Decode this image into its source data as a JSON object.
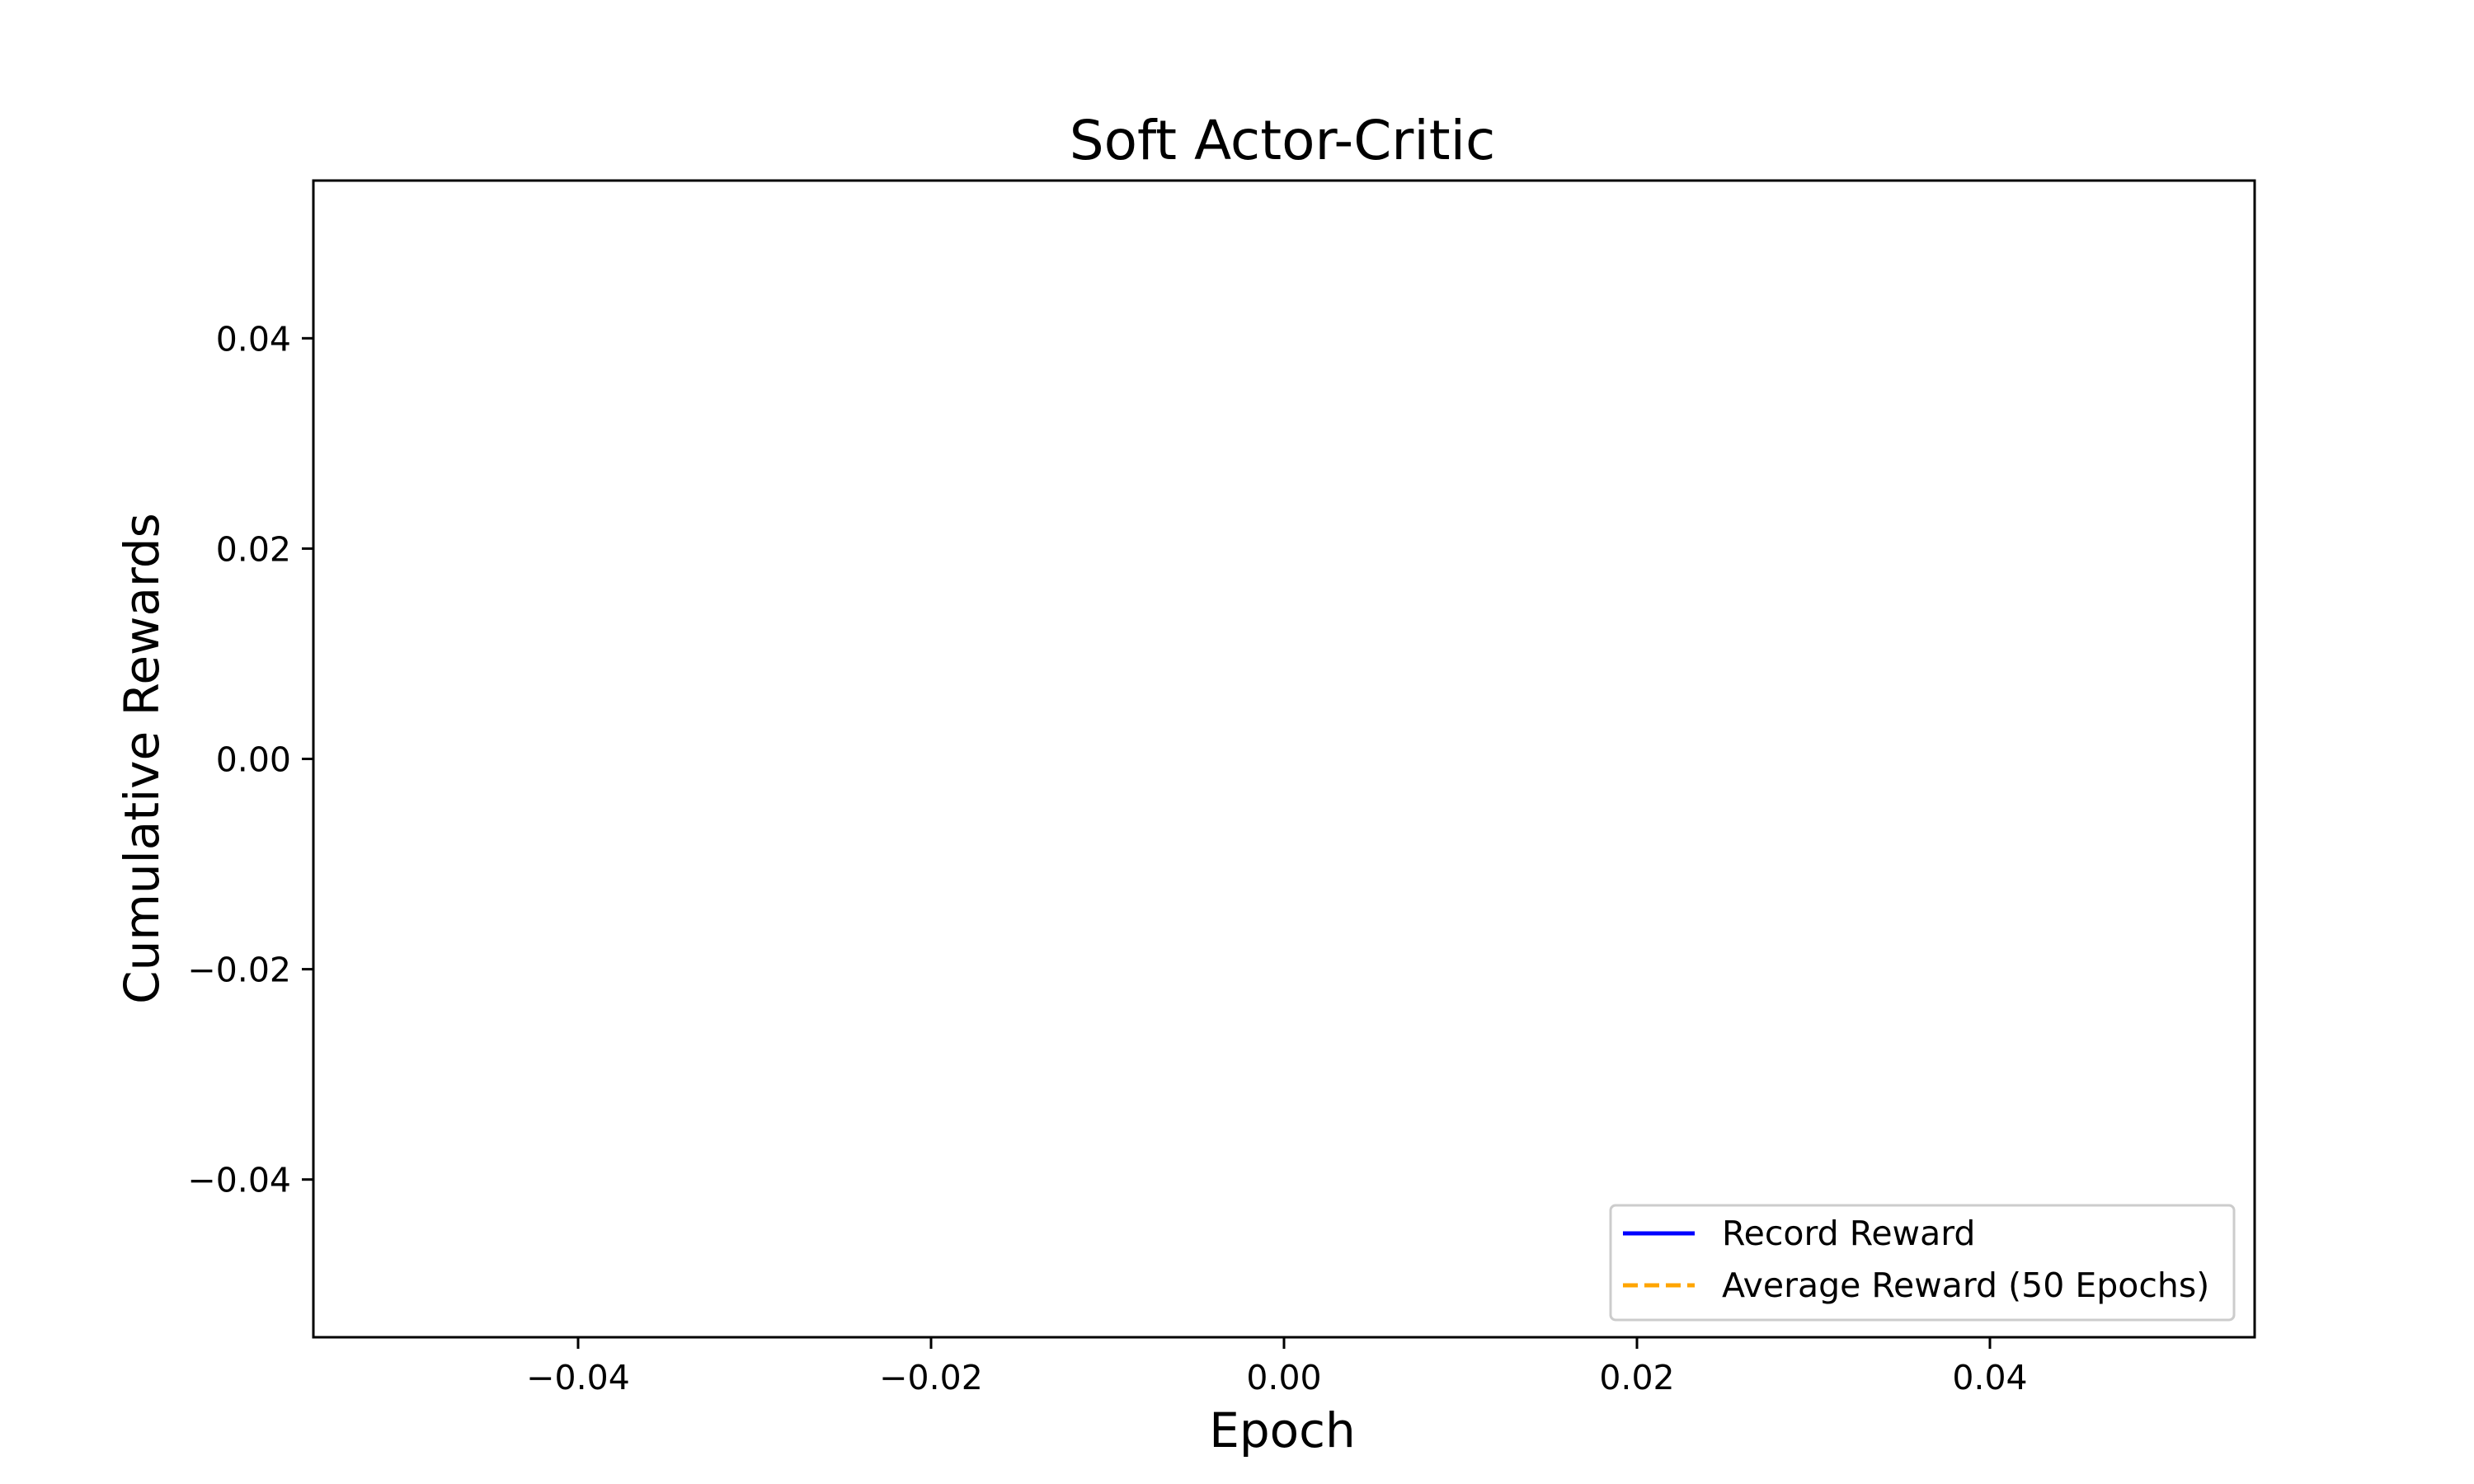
{
  "chart_data": {
    "type": "line",
    "title": "Soft Actor-Critic",
    "xlabel": "Epoch",
    "ylabel": "Cumulative Rewards",
    "xlim": [
      -0.055,
      0.055
    ],
    "ylim": [
      -0.055,
      0.055
    ],
    "x_ticks": [
      "−0.04",
      "−0.02",
      "0.00",
      "0.02",
      "0.04"
    ],
    "x_tick_values": [
      -0.04,
      -0.02,
      0.0,
      0.02,
      0.04
    ],
    "y_ticks": [
      "−0.04",
      "−0.02",
      "0.00",
      "0.02",
      "0.04"
    ],
    "y_tick_values": [
      -0.04,
      -0.02,
      0.0,
      0.02,
      0.04
    ],
    "grid": false,
    "legend_position": "lower-right",
    "series": [
      {
        "name": "Record Reward",
        "color": "#0000ff",
        "style": "solid",
        "x": [],
        "y": []
      },
      {
        "name": "Average Reward (50 Epochs)",
        "color": "#ffa500",
        "style": "dashed",
        "x": [],
        "y": []
      }
    ]
  }
}
